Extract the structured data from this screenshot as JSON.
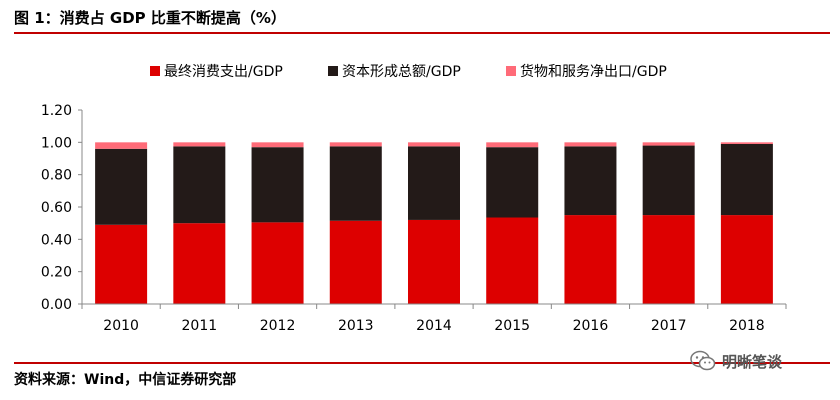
{
  "header": {
    "title": "图 1：消费占 GDP 比重不断提高（%）"
  },
  "footer": {
    "source": "资料来源：Wind，中信证券研究部",
    "watermark": "明晰笔谈"
  },
  "colors": {
    "rule": "#c00000",
    "series1": "#dd0000",
    "series2": "#231a18",
    "series3": "#ff6b78"
  },
  "chart_data": {
    "type": "bar",
    "stacked": true,
    "title": "",
    "xlabel": "",
    "ylabel": "",
    "categories": [
      "2010",
      "2011",
      "2012",
      "2013",
      "2014",
      "2015",
      "2016",
      "2017",
      "2018"
    ],
    "series": [
      {
        "name": "最终消费支出/GDP",
        "color": "#dd0000",
        "values": [
          0.49,
          0.5,
          0.505,
          0.515,
          0.52,
          0.535,
          0.55,
          0.55,
          0.55
        ]
      },
      {
        "name": "资本形成总额/GDP",
        "color": "#231a18",
        "values": [
          0.47,
          0.475,
          0.465,
          0.46,
          0.455,
          0.435,
          0.425,
          0.43,
          0.44
        ]
      },
      {
        "name": "货物和服务净出口/GDP",
        "color": "#ff6b78",
        "values": [
          0.04,
          0.025,
          0.03,
          0.025,
          0.025,
          0.03,
          0.025,
          0.02,
          0.01
        ]
      }
    ],
    "yticks": [
      "0.00",
      "0.20",
      "0.40",
      "0.60",
      "0.80",
      "1.00",
      "1.20"
    ],
    "ylim": [
      0,
      1.2
    ],
    "grid": false,
    "legend_position": "top"
  }
}
